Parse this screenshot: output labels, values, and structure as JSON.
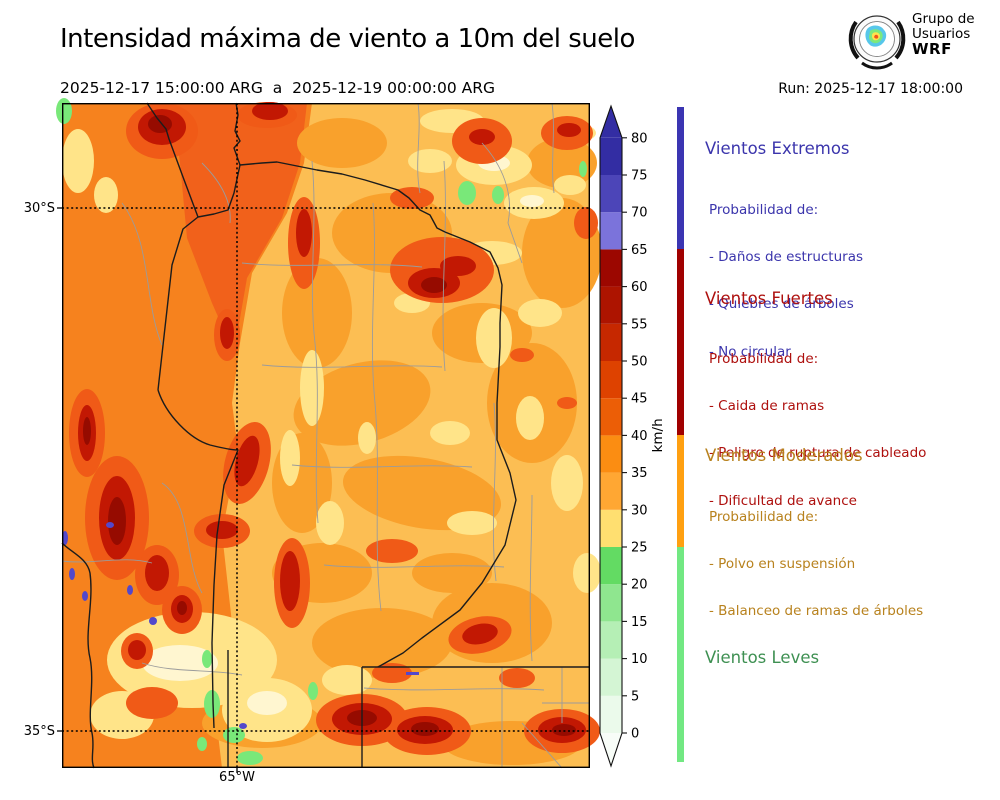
{
  "header": {
    "title": "Intensidad máxima de viento a 10m del suelo",
    "period": "2025-12-17 15:00:00 ARG  a  2025-12-19 00:00:00 ARG",
    "run_label": "Run: 2025-12-17 18:00:00",
    "logo": {
      "line1": "Grupo de",
      "line2": "Usuarios",
      "line3": "WRF"
    }
  },
  "map": {
    "y_ticks": [
      "30°S",
      "35°S"
    ],
    "x_ticks": [
      "65°W"
    ]
  },
  "colorbar": {
    "unit": "km/h",
    "ticks": [
      0,
      5,
      10,
      15,
      20,
      25,
      30,
      35,
      40,
      45,
      50,
      55,
      60,
      65,
      70,
      75,
      80
    ],
    "segments": [
      {
        "from": 0,
        "to": 5,
        "color": "#EBFAEB"
      },
      {
        "from": 5,
        "to": 10,
        "color": "#D4F5D4"
      },
      {
        "from": 10,
        "to": 15,
        "color": "#B5EFB5"
      },
      {
        "from": 15,
        "to": 20,
        "color": "#8FE68F"
      },
      {
        "from": 20,
        "to": 25,
        "color": "#63DB63"
      },
      {
        "from": 25,
        "to": 30,
        "color": "#FFDF70"
      },
      {
        "from": 30,
        "to": 35,
        "color": "#FFA733"
      },
      {
        "from": 35,
        "to": 40,
        "color": "#FB8D12"
      },
      {
        "from": 40,
        "to": 45,
        "color": "#EC5E06"
      },
      {
        "from": 45,
        "to": 50,
        "color": "#DE4200"
      },
      {
        "from": 50,
        "to": 55,
        "color": "#C62800"
      },
      {
        "from": 55,
        "to": 60,
        "color": "#AD1400"
      },
      {
        "from": 60,
        "to": 65,
        "color": "#9C0700"
      },
      {
        "from": 65,
        "to": 70,
        "color": "#7B73DB"
      },
      {
        "from": 70,
        "to": 75,
        "color": "#4C45B8"
      },
      {
        "from": 75,
        "to": 80,
        "color": "#332DA3"
      }
    ],
    "arrow_top_color": "#332DA3",
    "arrow_bottom_color": "#F8FDF8"
  },
  "legend": {
    "sections": [
      {
        "title": "Vientos Extremos",
        "color": "#3B35AC",
        "bar_color": "#3B35B2",
        "range_kmh": [
          65,
          99
        ],
        "items": [
          "Probabilidad de:",
          "- Daños de estructuras",
          "- Quiebres de árboles",
          "- No circular"
        ]
      },
      {
        "title": "Vientos Fuertes",
        "color": "#AE100E",
        "bar_color": "#A00000",
        "range_kmh": [
          40,
          65
        ],
        "items": [
          "Probabilidad de:",
          "- Caida de ramas",
          "- Peligro de ruptura de cableado",
          "- Dificultad de avance"
        ]
      },
      {
        "title": "Vientos Moderados",
        "color": "#B8821E",
        "bar_color": "#FFA011",
        "range_kmh": [
          25,
          40
        ],
        "items": [
          "Probabilidad de:",
          "- Polvo en suspensión",
          "- Balanceo de ramas de árboles"
        ]
      },
      {
        "title": "Vientos Leves",
        "color": "#3E9052",
        "bar_color": "#72E882",
        "range_kmh": [
          0,
          25
        ],
        "items": []
      }
    ]
  }
}
